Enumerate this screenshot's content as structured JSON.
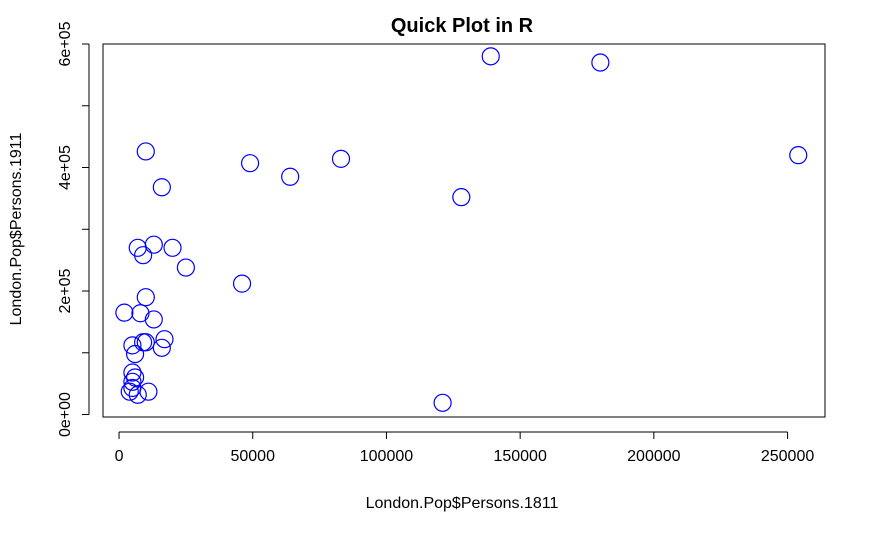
{
  "chart_data": {
    "type": "scatter",
    "title": "Quick Plot in R",
    "xlabel": "London.Pop$Persons.1811",
    "ylabel": "London.Pop$Persons.1911",
    "xlim": [
      -6000,
      264000
    ],
    "ylim": [
      -4000,
      600000
    ],
    "x_ticks": [
      0,
      50000,
      100000,
      150000,
      200000,
      250000
    ],
    "x_tick_labels": [
      "0",
      "50000",
      "100000",
      "150000",
      "200000",
      "250000"
    ],
    "y_ticks": [
      0,
      100000,
      200000,
      300000,
      400000,
      500000,
      600000
    ],
    "y_tick_labels": [
      "0e+00",
      "",
      "2e+05",
      "",
      "4e+05",
      "",
      "6e+05"
    ],
    "grid": false,
    "marker": "open-circle",
    "marker_color": "#0000ff",
    "series": [
      {
        "points": [
          {
            "x": 139000,
            "y": 580000
          },
          {
            "x": 180000,
            "y": 570000
          },
          {
            "x": 10000,
            "y": 426000
          },
          {
            "x": 254000,
            "y": 420000
          },
          {
            "x": 83000,
            "y": 414000
          },
          {
            "x": 49000,
            "y": 407000
          },
          {
            "x": 64000,
            "y": 385000
          },
          {
            "x": 16000,
            "y": 368000
          },
          {
            "x": 128000,
            "y": 352000
          },
          {
            "x": 13000,
            "y": 275000
          },
          {
            "x": 7000,
            "y": 270000
          },
          {
            "x": 20000,
            "y": 270000
          },
          {
            "x": 9000,
            "y": 258000
          },
          {
            "x": 25000,
            "y": 238000
          },
          {
            "x": 46000,
            "y": 212000
          },
          {
            "x": 10000,
            "y": 190000
          },
          {
            "x": 2000,
            "y": 165000
          },
          {
            "x": 8000,
            "y": 164000
          },
          {
            "x": 13000,
            "y": 154000
          },
          {
            "x": 17000,
            "y": 122000
          },
          {
            "x": 9000,
            "y": 117000
          },
          {
            "x": 10000,
            "y": 117000
          },
          {
            "x": 5000,
            "y": 112000
          },
          {
            "x": 16000,
            "y": 108000
          },
          {
            "x": 6000,
            "y": 98000
          },
          {
            "x": 5000,
            "y": 68000
          },
          {
            "x": 6000,
            "y": 60000
          },
          {
            "x": 5000,
            "y": 53000
          },
          {
            "x": 5000,
            "y": 43000
          },
          {
            "x": 4000,
            "y": 37000
          },
          {
            "x": 11000,
            "y": 37000
          },
          {
            "x": 7000,
            "y": 32000
          },
          {
            "x": 121000,
            "y": 19000
          }
        ]
      }
    ]
  }
}
